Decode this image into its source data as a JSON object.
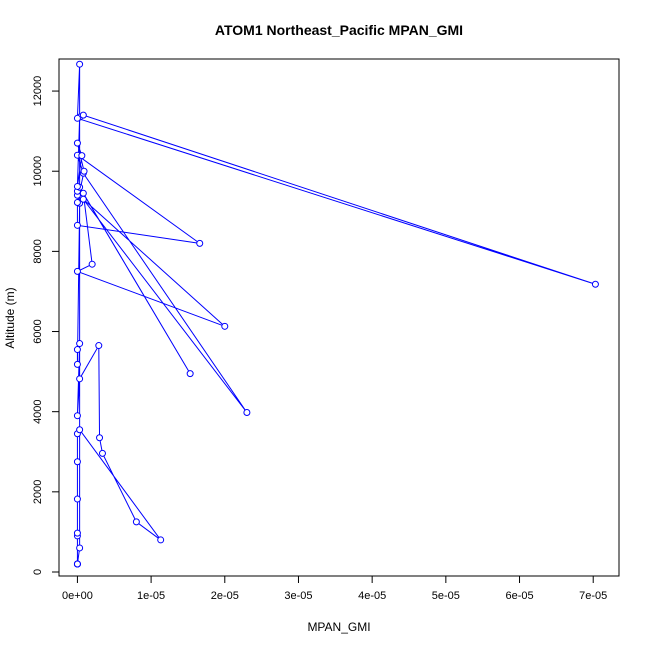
{
  "chart_data": {
    "type": "line",
    "title": "ATOM1 Northeast_Pacific MPAN_GMI",
    "xlabel": "MPAN_GMI",
    "ylabel": "Altitude (m)",
    "xlim": [
      -2.5e-06,
      7.35e-05
    ],
    "ylim": [
      -100,
      12800
    ],
    "x_ticks": [
      0,
      1e-05,
      2e-05,
      3e-05,
      4e-05,
      5e-05,
      6e-05,
      7e-05
    ],
    "x_tick_labels": [
      "0e+00",
      "1e-05",
      "2e-05",
      "3e-05",
      "4e-05",
      "5e-05",
      "6e-05",
      "7e-05"
    ],
    "y_ticks": [
      0,
      2000,
      4000,
      6000,
      8000,
      10000,
      12000
    ],
    "y_tick_labels": [
      "0",
      "2000",
      "4000",
      "6000",
      "8000",
      "10000",
      "12000"
    ],
    "grid": false,
    "marker": "open-circle",
    "color": "#0000ff",
    "series": [
      {
        "x": [
          0,
          0,
          0,
          0,
          0,
          0,
          0,
          3e-07,
          1.13e-05,
          8e-06,
          3.4e-06,
          3e-06,
          2.9e-06,
          3e-07,
          0,
          3e-07,
          0,
          0,
          3e-07,
          0,
          0,
          3e-07,
          1.53e-05,
          8e-07,
          2e-06,
          0,
          2e-05,
          8e-07,
          2.3e-05,
          8e-07,
          0,
          1.66e-05,
          0,
          0,
          9e-07,
          0,
          6e-07,
          0,
          3e-07,
          8e-07,
          7.03e-05,
          0,
          3e-07,
          3e-07,
          0
        ],
        "y": [
          200,
          200,
          900,
          970,
          1820,
          2750,
          3450,
          3550,
          800,
          1250,
          2960,
          3350,
          5650,
          4820,
          3900,
          5700,
          5550,
          5180,
          9200,
          9400,
          9500,
          9600,
          4950,
          9450,
          7680,
          7500,
          6130,
          9300,
          3980,
          9950,
          10400,
          8200,
          8650,
          9220,
          10000,
          10700,
          10390,
          9620,
          11350,
          11400,
          7180,
          11320,
          12670,
          600,
          200
        ]
      }
    ]
  }
}
